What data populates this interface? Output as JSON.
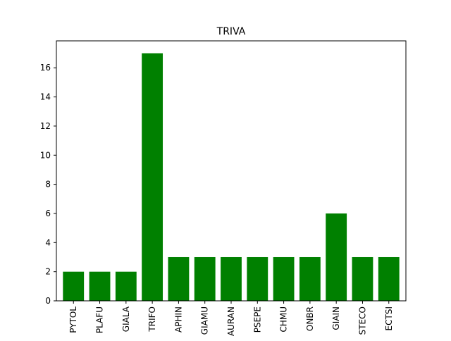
{
  "chart_data": {
    "type": "bar",
    "title": "TRIVA",
    "xlabel": "",
    "ylabel": "",
    "categories": [
      "PYTOL",
      "PLAFU",
      "GIALA",
      "TRIFO",
      "APHIN",
      "GIAMU",
      "AURAN",
      "PSEPE",
      "CHMU",
      "ONBR",
      "GIAIN",
      "STECO",
      "ECTSI"
    ],
    "values": [
      2,
      2,
      2,
      17,
      3,
      3,
      3,
      3,
      3,
      3,
      6,
      3,
      3
    ],
    "ylim": [
      0,
      17.85
    ],
    "yticks": [
      0,
      2,
      4,
      6,
      8,
      10,
      12,
      14,
      16
    ],
    "grid": false,
    "legend": "none",
    "bar_color": "#008000"
  }
}
